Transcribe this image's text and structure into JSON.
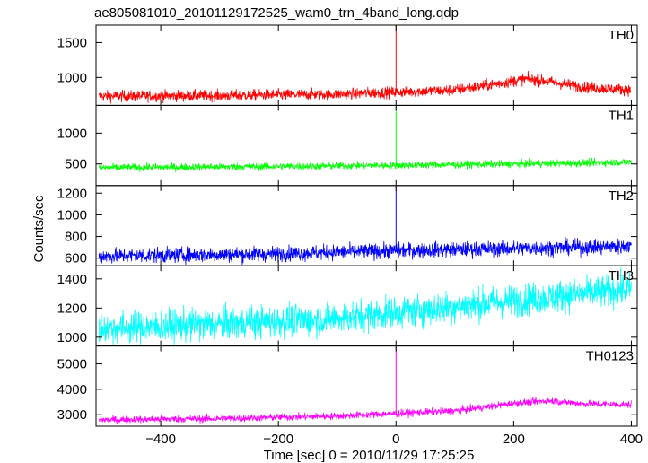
{
  "chart_data": {
    "type": "line",
    "title": "ae805081010_20101129172525_wam0_trn_4band_long.qdp",
    "xlabel": "Time [sec] 0 = 2010/11/29 17:25:25",
    "ylabel": "Counts/sec",
    "xlim": [
      -510,
      410
    ],
    "x_ticks": [
      -400,
      -200,
      0,
      200,
      400
    ],
    "grid": false,
    "panels": [
      {
        "name": "TH0",
        "color": "#ff0000",
        "ylim": [
          600,
          1750
        ],
        "y_ticks": [
          1000,
          1500
        ],
        "spike": {
          "x": 0,
          "y": 1750
        },
        "trend": [
          [
            -505,
            730
          ],
          [
            -300,
            740
          ],
          [
            -100,
            760
          ],
          [
            0,
            790
          ],
          [
            100,
            820
          ],
          [
            180,
            920
          ],
          [
            220,
            980
          ],
          [
            260,
            940
          ],
          [
            320,
            860
          ],
          [
            400,
            820
          ]
        ],
        "noise": 40
      },
      {
        "name": "TH1",
        "color": "#00ff00",
        "ylim": [
          150,
          1450
        ],
        "y_ticks": [
          500,
          1000
        ],
        "spike": {
          "x": 0,
          "y": 1450
        },
        "trend": [
          [
            -505,
            440
          ],
          [
            -200,
            460
          ],
          [
            0,
            480
          ],
          [
            200,
            500
          ],
          [
            400,
            530
          ]
        ],
        "noise": 30
      },
      {
        "name": "TH2",
        "color": "#0000ff",
        "ylim": [
          530,
          1270
        ],
        "y_ticks": [
          600,
          800,
          1000,
          1200
        ],
        "spike": {
          "x": 0,
          "y": 1270
        },
        "trend": [
          [
            -505,
            620
          ],
          [
            -200,
            640
          ],
          [
            0,
            670
          ],
          [
            200,
            690
          ],
          [
            400,
            710
          ]
        ],
        "noise": 35
      },
      {
        "name": "TH3",
        "color": "#00ffff",
        "ylim": [
          940,
          1490
        ],
        "y_ticks": [
          1000,
          1200,
          1400
        ],
        "trend": [
          [
            -505,
            1060
          ],
          [
            -300,
            1090
          ],
          [
            -100,
            1130
          ],
          [
            0,
            1170
          ],
          [
            200,
            1250
          ],
          [
            400,
            1330
          ]
        ],
        "noise": 55
      },
      {
        "name": "TH0123",
        "color": "#ff00ff",
        "ylim": [
          2550,
          5700
        ],
        "y_ticks": [
          3000,
          4000,
          5000
        ],
        "spike": {
          "x": 0,
          "y": 5700
        },
        "trend": [
          [
            -505,
            2800
          ],
          [
            -300,
            2850
          ],
          [
            -100,
            2950
          ],
          [
            0,
            3050
          ],
          [
            100,
            3150
          ],
          [
            200,
            3450
          ],
          [
            260,
            3550
          ],
          [
            320,
            3430
          ],
          [
            400,
            3400
          ]
        ],
        "noise": 70
      }
    ]
  }
}
